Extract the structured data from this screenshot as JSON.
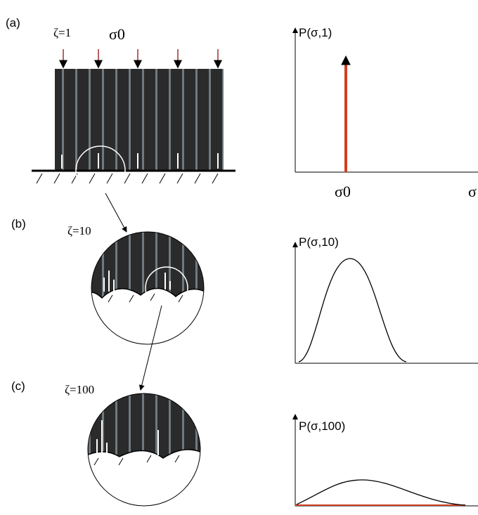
{
  "panels": [
    {
      "label": "(a)",
      "zeta": "ζ=1",
      "stress": "σ0",
      "plot_title": "P(σ,1)",
      "x_tick": "σ0",
      "x_axis": "σ"
    },
    {
      "label": "(b)",
      "zeta": "ζ=10",
      "plot_title": "P(σ,10)"
    },
    {
      "label": "(c)",
      "zeta": "ζ=100",
      "plot_title": "P(σ,100)"
    }
  ]
}
